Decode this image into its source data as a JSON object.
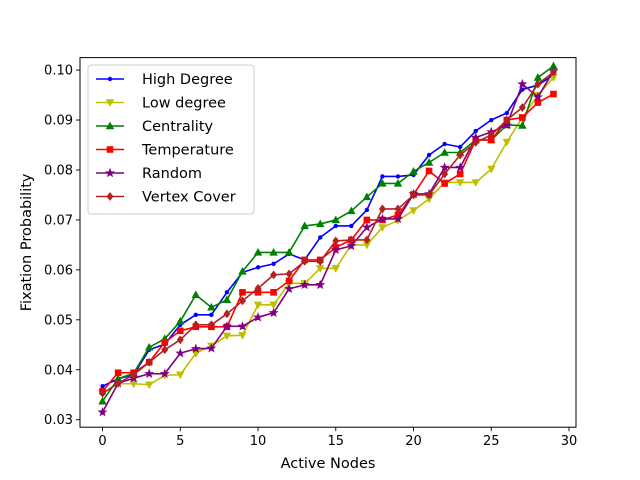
{
  "chart_data": {
    "type": "line",
    "title": "",
    "xlabel": "Active Nodes",
    "ylabel": "Fixation Probability",
    "xlim": [
      -1.45,
      30.45
    ],
    "ylim": [
      0.0285,
      0.1025
    ],
    "xticks": [
      0,
      5,
      10,
      15,
      20,
      25,
      30
    ],
    "yticks": [
      0.03,
      0.04,
      0.05,
      0.06,
      0.07,
      0.08,
      0.09,
      0.1
    ],
    "ytick_labels": [
      "0.03",
      "0.04",
      "0.05",
      "0.06",
      "0.07",
      "0.08",
      "0.09",
      "0.10"
    ],
    "grid": false,
    "legend_position": "upper-left",
    "x": [
      0,
      1,
      2,
      3,
      4,
      5,
      6,
      7,
      8,
      9,
      10,
      11,
      12,
      13,
      14,
      15,
      16,
      17,
      18,
      19,
      20,
      21,
      22,
      23,
      24,
      25,
      26,
      27,
      28,
      29
    ],
    "series": [
      {
        "name": "High Degree",
        "color": "#0000ff",
        "marker": "point",
        "values": [
          0.0367,
          0.0382,
          0.039,
          0.044,
          0.0451,
          0.049,
          0.051,
          0.051,
          0.0555,
          0.0595,
          0.0605,
          0.0612,
          0.0632,
          0.062,
          0.0665,
          0.0688,
          0.0688,
          0.072,
          0.0787,
          0.0787,
          0.079,
          0.083,
          0.0852,
          0.0846,
          0.0878,
          0.09,
          0.0914,
          0.0961,
          0.097,
          0.099
        ]
      },
      {
        "name": "Low degree",
        "color": "#bfbf00",
        "marker": "triangle-down",
        "values": [
          0.0353,
          0.0372,
          0.0372,
          0.037,
          0.0389,
          0.039,
          0.0433,
          0.0448,
          0.0468,
          0.0469,
          0.053,
          0.053,
          0.0573,
          0.0573,
          0.0603,
          0.0603,
          0.065,
          0.065,
          0.0685,
          0.0699,
          0.0719,
          0.0742,
          0.0775,
          0.0775,
          0.0775,
          0.0802,
          0.0856,
          0.0905,
          0.095,
          0.0985
        ]
      },
      {
        "name": "Centrality",
        "color": "#008000",
        "marker": "triangle-up",
        "values": [
          0.0337,
          0.0382,
          0.0393,
          0.0445,
          0.0462,
          0.0497,
          0.055,
          0.0525,
          0.054,
          0.0597,
          0.0635,
          0.0635,
          0.0635,
          0.0688,
          0.0692,
          0.07,
          0.0718,
          0.0746,
          0.0773,
          0.0773,
          0.0797,
          0.0815,
          0.0835,
          0.0835,
          0.086,
          0.086,
          0.089,
          0.0889,
          0.0985,
          0.1008
        ]
      },
      {
        "name": "Temperature",
        "color": "#ff0000",
        "marker": "square",
        "values": [
          0.0357,
          0.0394,
          0.0394,
          0.0415,
          0.0455,
          0.0478,
          0.0486,
          0.0486,
          0.0486,
          0.0555,
          0.0555,
          0.0555,
          0.0578,
          0.062,
          0.062,
          0.0645,
          0.066,
          0.07,
          0.07,
          0.071,
          0.0751,
          0.0798,
          0.0773,
          0.0792,
          0.086,
          0.086,
          0.09,
          0.0905,
          0.0935,
          0.0952
        ]
      },
      {
        "name": "Random",
        "color": "#800080",
        "marker": "star",
        "values": [
          0.0315,
          0.0373,
          0.0383,
          0.0392,
          0.0392,
          0.0433,
          0.0442,
          0.0443,
          0.0487,
          0.0487,
          0.0505,
          0.0514,
          0.0562,
          0.057,
          0.057,
          0.064,
          0.0648,
          0.0685,
          0.0702,
          0.0702,
          0.0752,
          0.0752,
          0.0805,
          0.0805,
          0.0865,
          0.0876,
          0.089,
          0.0972,
          0.0946,
          0.0998
        ]
      },
      {
        "name": "Vertex Cover",
        "color": "#b22222",
        "marker": "diamond",
        "values": [
          0.0353,
          0.0373,
          0.039,
          0.0415,
          0.044,
          0.046,
          0.049,
          0.049,
          0.0512,
          0.0538,
          0.0563,
          0.059,
          0.0592,
          0.0617,
          0.0617,
          0.0658,
          0.066,
          0.066,
          0.0722,
          0.0722,
          0.075,
          0.075,
          0.0792,
          0.083,
          0.0855,
          0.087,
          0.09,
          0.0925,
          0.0972,
          0.0996
        ]
      }
    ]
  }
}
